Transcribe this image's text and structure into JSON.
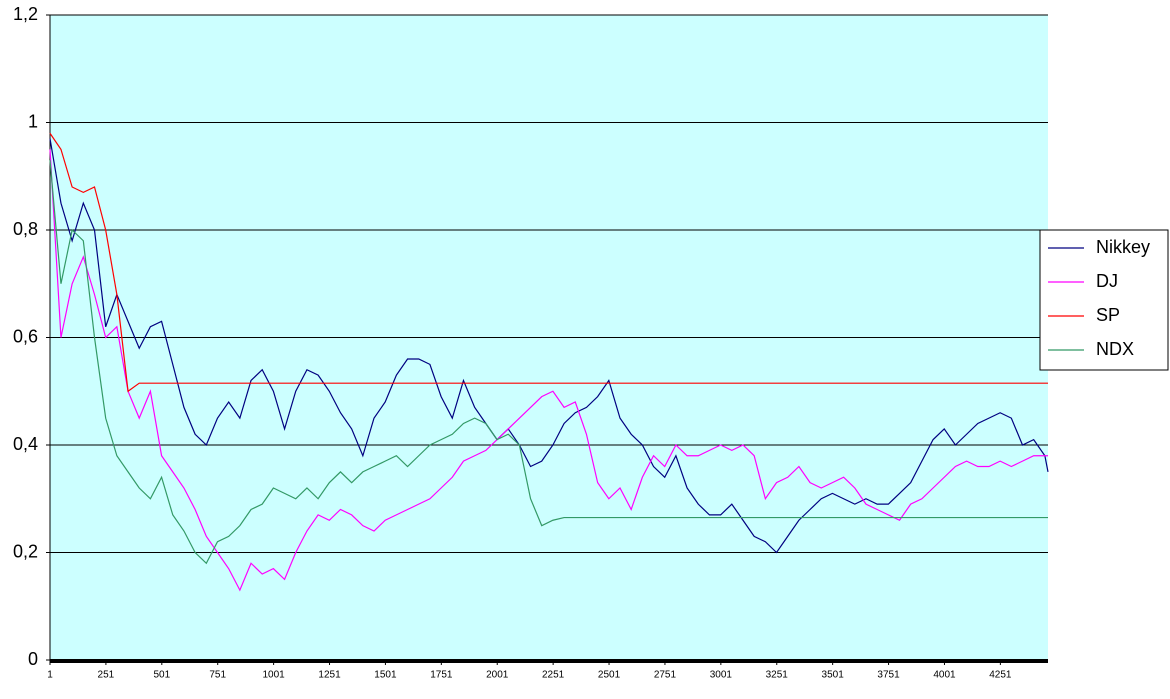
{
  "chart_data": {
    "type": "line",
    "x": [
      1,
      50,
      100,
      150,
      200,
      250,
      300,
      350,
      400,
      450,
      500,
      550,
      600,
      650,
      700,
      750,
      800,
      850,
      900,
      950,
      1000,
      1050,
      1100,
      1150,
      1200,
      1250,
      1300,
      1350,
      1400,
      1450,
      1500,
      1550,
      1600,
      1650,
      1700,
      1750,
      1800,
      1850,
      1900,
      1950,
      2000,
      2050,
      2100,
      2150,
      2200,
      2250,
      2300,
      2350,
      2400,
      2450,
      2500,
      2550,
      2600,
      2650,
      2700,
      2750,
      2800,
      2850,
      2900,
      2950,
      3000,
      3050,
      3100,
      3150,
      3200,
      3250,
      3300,
      3350,
      3400,
      3450,
      3500,
      3550,
      3600,
      3650,
      3700,
      3750,
      3800,
      3850,
      3900,
      3950,
      4000,
      4050,
      4100,
      4150,
      4200,
      4250,
      4300,
      4350,
      4400,
      4450,
      4464
    ],
    "series": [
      {
        "name": "Nikkey",
        "color": "#000080",
        "values": [
          0.97,
          0.85,
          0.78,
          0.85,
          0.8,
          0.62,
          0.68,
          0.63,
          0.58,
          0.62,
          0.63,
          0.55,
          0.47,
          0.42,
          0.4,
          0.45,
          0.48,
          0.45,
          0.52,
          0.54,
          0.5,
          0.43,
          0.5,
          0.54,
          0.53,
          0.5,
          0.46,
          0.43,
          0.38,
          0.45,
          0.48,
          0.53,
          0.56,
          0.56,
          0.55,
          0.49,
          0.45,
          0.52,
          0.47,
          0.44,
          0.41,
          0.43,
          0.4,
          0.36,
          0.37,
          0.4,
          0.44,
          0.46,
          0.47,
          0.49,
          0.52,
          0.45,
          0.42,
          0.4,
          0.36,
          0.34,
          0.38,
          0.32,
          0.29,
          0.27,
          0.27,
          0.29,
          0.26,
          0.23,
          0.22,
          0.2,
          0.23,
          0.26,
          0.28,
          0.3,
          0.31,
          0.3,
          0.29,
          0.3,
          0.29,
          0.29,
          0.31,
          0.33,
          0.37,
          0.41,
          0.43,
          0.4,
          0.42,
          0.44,
          0.45,
          0.46,
          0.45,
          0.4,
          0.41,
          0.38,
          0.35
        ]
      },
      {
        "name": "DJ",
        "color": "#ff00ff",
        "values": [
          0.95,
          0.6,
          0.7,
          0.75,
          0.68,
          0.6,
          0.62,
          0.5,
          0.45,
          0.5,
          0.38,
          0.35,
          0.32,
          0.28,
          0.23,
          0.2,
          0.17,
          0.13,
          0.18,
          0.16,
          0.17,
          0.15,
          0.2,
          0.24,
          0.27,
          0.26,
          0.28,
          0.27,
          0.25,
          0.24,
          0.26,
          0.27,
          0.28,
          0.29,
          0.3,
          0.32,
          0.34,
          0.37,
          0.38,
          0.39,
          0.41,
          0.43,
          0.45,
          0.47,
          0.49,
          0.5,
          0.47,
          0.48,
          0.42,
          0.33,
          0.3,
          0.32,
          0.28,
          0.34,
          0.38,
          0.36,
          0.4,
          0.38,
          0.38,
          0.39,
          0.4,
          0.39,
          0.4,
          0.38,
          0.3,
          0.33,
          0.34,
          0.36,
          0.33,
          0.32,
          0.33,
          0.34,
          0.32,
          0.29,
          0.28,
          0.27,
          0.26,
          0.29,
          0.3,
          0.32,
          0.34,
          0.36,
          0.37,
          0.36,
          0.36,
          0.37,
          0.36,
          0.37,
          0.38,
          0.38,
          0.38
        ]
      },
      {
        "name": "SP",
        "color": "#ff0000",
        "values": [
          0.98,
          0.95,
          0.88,
          0.87,
          0.88,
          0.8,
          0.68,
          0.5,
          0.515,
          0.515,
          0.515,
          0.515,
          0.515,
          0.515,
          0.515,
          0.515,
          0.515,
          0.515,
          0.515,
          0.515,
          0.515,
          0.515,
          0.515,
          0.515,
          0.515,
          0.515,
          0.515,
          0.515,
          0.515,
          0.515,
          0.515,
          0.515,
          0.515,
          0.515,
          0.515,
          0.515,
          0.515,
          0.515,
          0.515,
          0.515,
          0.515,
          0.515,
          0.515,
          0.515,
          0.515,
          0.515,
          0.515,
          0.515,
          0.515,
          0.515,
          0.515,
          0.515,
          0.515,
          0.515,
          0.515,
          0.515,
          0.515,
          0.515,
          0.515,
          0.515,
          0.515,
          0.515,
          0.515,
          0.515,
          0.515,
          0.515,
          0.515,
          0.515,
          0.515,
          0.515,
          0.515,
          0.515,
          0.515,
          0.515,
          0.515,
          0.515,
          0.515,
          0.515,
          0.515,
          0.515,
          0.515,
          0.515,
          0.515,
          0.515,
          0.515,
          0.515,
          0.515,
          0.515,
          0.515,
          0.515,
          0.515
        ]
      },
      {
        "name": "NDX",
        "color": "#339966",
        "values": [
          0.93,
          0.7,
          0.8,
          0.78,
          0.6,
          0.45,
          0.38,
          0.35,
          0.32,
          0.3,
          0.34,
          0.27,
          0.24,
          0.2,
          0.18,
          0.22,
          0.23,
          0.25,
          0.28,
          0.29,
          0.32,
          0.31,
          0.3,
          0.32,
          0.3,
          0.33,
          0.35,
          0.33,
          0.35,
          0.36,
          0.37,
          0.38,
          0.36,
          0.38,
          0.4,
          0.41,
          0.42,
          0.44,
          0.45,
          0.44,
          0.41,
          0.42,
          0.4,
          0.3,
          0.25,
          0.26,
          0.265,
          0.265,
          0.265,
          0.265,
          0.265,
          0.265,
          0.265,
          0.265,
          0.265,
          0.265,
          0.265,
          0.265,
          0.265,
          0.265,
          0.265,
          0.265,
          0.265,
          0.265,
          0.265,
          0.265,
          0.265,
          0.265,
          0.265,
          0.265,
          0.265,
          0.265,
          0.265,
          0.265,
          0.265,
          0.265,
          0.265,
          0.265,
          0.265,
          0.265,
          0.265,
          0.265,
          0.265,
          0.265,
          0.265,
          0.265,
          0.265,
          0.265,
          0.265,
          0.265,
          0.265
        ]
      }
    ],
    "xlim": [
      1,
      4464
    ],
    "xticks": [
      1,
      251,
      501,
      751,
      1001,
      1251,
      1501,
      1751,
      2001,
      2251,
      2501,
      2751,
      3001,
      3251,
      3501,
      3751,
      4001,
      4251
    ],
    "ylim": [
      0,
      1.2
    ],
    "yticks": [
      0,
      {
        "value": 0.2,
        "label": "0,2"
      },
      {
        "value": 0.4,
        "label": "0,4"
      },
      {
        "value": 0.6,
        "label": "0,6"
      },
      {
        "value": 0.8,
        "label": "0,8"
      },
      1,
      {
        "value": 1.2,
        "label": "1,2"
      }
    ],
    "grid": true,
    "legend": "right",
    "plot_background": "#ccffff"
  }
}
